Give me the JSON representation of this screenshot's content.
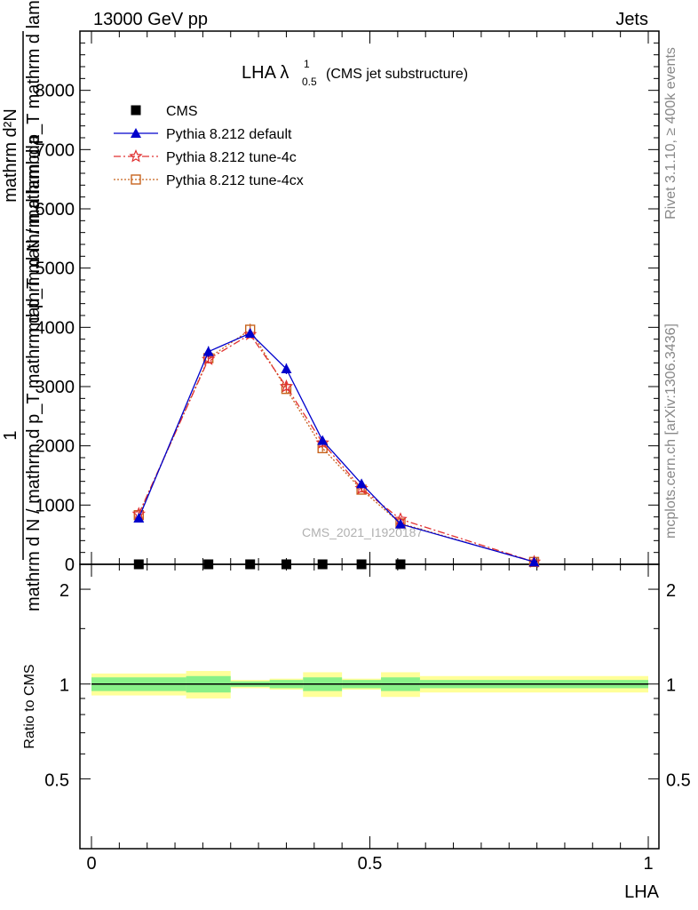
{
  "header": {
    "left": "13000 GeV pp",
    "right": "Jets"
  },
  "side_labels": {
    "rivet": "Rivet 3.1.10, ≥ 400k events",
    "mcplots": "mcplots.cern.ch [arXiv:1306.3436]"
  },
  "watermark": "CMS_2021_I1920187",
  "chart_data": [
    {
      "type": "line",
      "panel": "main",
      "title_main": "LHA λ",
      "title_sup": "1",
      "title_sub": "0.5",
      "title_suffix": "(CMS jet substructure)",
      "ylabel_top": "mathrm d²N",
      "ylabel_numerator": "1",
      "ylabel_denominator": "mathrm d N / mathrm d p_T mathrm d p_T mathrm d lambda",
      "ylabel_overlap": "mathrm d N / mathrm d p_T mathrm d lambda",
      "xlim": [
        0,
        1
      ],
      "ylim": [
        0,
        9000
      ],
      "y_ticks": [
        0,
        1000,
        2000,
        3000,
        4000,
        5000,
        6000,
        7000,
        8000
      ],
      "y_tick_labels": [
        "0",
        "1000",
        "2000",
        "3000",
        "4000",
        "5000",
        "6000",
        "7000",
        "8000"
      ],
      "legend_position": "top-left",
      "x": [
        0.085,
        0.21,
        0.285,
        0.35,
        0.415,
        0.485,
        0.555,
        0.795
      ],
      "series": [
        {
          "name": "CMS",
          "color": "#000000",
          "marker": "square",
          "line": "none",
          "values": [
            0,
            0,
            0,
            0,
            0,
            0,
            0,
            null
          ]
        },
        {
          "name": "Pythia 8.212 default",
          "color": "#0000cc",
          "marker": "triangle",
          "line": "solid",
          "values": [
            780,
            3590,
            3900,
            3300,
            2090,
            1360,
            680,
            40
          ],
          "errors": [
            50,
            90,
            60,
            90,
            70,
            60,
            40,
            10
          ]
        },
        {
          "name": "Pythia 8.212 tune-4c",
          "color": "#e03030",
          "marker": "star",
          "line": "dashdot",
          "values": [
            850,
            3460,
            3880,
            3000,
            2050,
            1280,
            760,
            40
          ],
          "errors": [
            40,
            70,
            60,
            70,
            60,
            50,
            40,
            10
          ]
        },
        {
          "name": "Pythia 8.212 tune-4cx",
          "color": "#c8641e",
          "marker": "open-square",
          "line": "dotted",
          "values": [
            830,
            3480,
            3960,
            2960,
            1960,
            1260,
            690,
            40
          ],
          "errors": [
            40,
            70,
            100,
            70,
            60,
            50,
            40,
            10
          ]
        }
      ]
    },
    {
      "type": "area",
      "panel": "ratio",
      "ylabel": "Ratio to CMS",
      "xlabel": "LHA",
      "xlim": [
        0,
        1
      ],
      "ylim": [
        0.3,
        2.4
      ],
      "y_ticks": [
        0.5,
        1,
        2
      ],
      "y_tick_labels": [
        "0.5",
        "1",
        "2"
      ],
      "x_ticks": [
        0,
        0.5,
        1
      ],
      "x_tick_labels": [
        "0",
        "0.5",
        "1"
      ],
      "reference": 1,
      "bins": [
        [
          0.0,
          0.17,
          0.95,
          1.05,
          0.92,
          1.08
        ],
        [
          0.17,
          0.25,
          0.94,
          1.06,
          0.9,
          1.1
        ],
        [
          0.25,
          0.32,
          0.98,
          1.02,
          0.97,
          1.03
        ],
        [
          0.32,
          0.38,
          0.97,
          1.03,
          0.96,
          1.04
        ],
        [
          0.38,
          0.45,
          0.95,
          1.05,
          0.91,
          1.09
        ],
        [
          0.45,
          0.52,
          0.97,
          1.03,
          0.96,
          1.04
        ],
        [
          0.52,
          0.59,
          0.95,
          1.05,
          0.91,
          1.09
        ],
        [
          0.59,
          1.0,
          0.97,
          1.03,
          0.94,
          1.06
        ]
      ],
      "bin_fields": [
        "x_low",
        "x_high",
        "inner_low",
        "inner_high",
        "outer_low",
        "outer_high"
      ],
      "inner_color": "#88f088",
      "outer_color": "#ffff99"
    }
  ]
}
